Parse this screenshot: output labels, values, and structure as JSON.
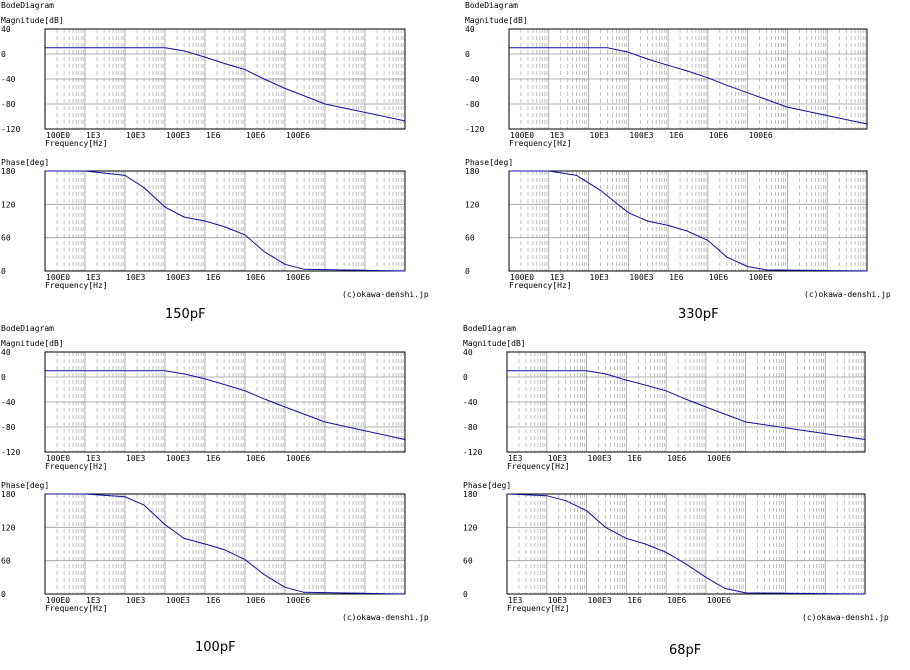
{
  "colors": {
    "grid": "#9a9a9a",
    "trace": "#1010a0",
    "border": "#000000"
  },
  "chart_data": [
    {
      "type": "line",
      "caption": "150pF",
      "title": "BodeDiagram",
      "copyright": "(c)okawa-denshi.jp",
      "x_scale": "log",
      "xlim": [
        1,
        1000000000
      ],
      "x_ticks": [
        {
          "value": 1,
          "label": "100E0"
        },
        {
          "value": 10,
          "label": "1E3"
        },
        {
          "value": 100,
          "label": "10E3"
        },
        {
          "value": 1000,
          "label": "100E3"
        },
        {
          "value": 10000,
          "label": "1E6"
        },
        {
          "value": 100000,
          "label": "10E6"
        },
        {
          "value": 1000000,
          "label": "100E6"
        }
      ],
      "xlabel": "Frequency[Hz]",
      "magnitude": {
        "ylabel": "Magnitude[dB]",
        "ylim": [
          -120,
          40
        ],
        "y_ticks": [
          40,
          0,
          -40,
          -80,
          -120
        ],
        "series": [
          {
            "x": [
              1,
              1000,
              3000,
              10000,
              30000,
              100000,
              300000,
              1000000,
              10000000,
              1000000000
            ],
            "y": [
              10,
              10,
              5,
              -5,
              -15,
              -25,
              -40,
              -55,
              -80,
              -107
            ]
          }
        ]
      },
      "phase": {
        "ylabel": "Phase[deg]",
        "ylim": [
          0,
          180
        ],
        "y_ticks": [
          180,
          120,
          60,
          0
        ],
        "series": [
          {
            "x": [
              1,
              10,
              100,
              300,
              1000,
              3000,
              10000,
              30000,
              100000,
              300000,
              1000000,
              3000000,
              1000000000
            ],
            "y": [
              180,
              180,
              172,
              150,
              115,
              97,
              90,
              80,
              65,
              35,
              12,
              3,
              0
            ]
          }
        ]
      }
    },
    {
      "type": "line",
      "caption": "330pF",
      "title": "BodeDiagram",
      "copyright": "(c)okawa-denshi.jp",
      "x_scale": "log",
      "xlim": [
        1,
        1000000000
      ],
      "x_ticks": [
        {
          "value": 1,
          "label": "100E0"
        },
        {
          "value": 10,
          "label": "1E3"
        },
        {
          "value": 100,
          "label": "10E3"
        },
        {
          "value": 1000,
          "label": "100E3"
        },
        {
          "value": 10000,
          "label": "1E6"
        },
        {
          "value": 100000,
          "label": "10E6"
        },
        {
          "value": 1000000,
          "label": "100E6"
        }
      ],
      "xlabel": "Frequency[Hz]",
      "magnitude": {
        "ylabel": "Magnitude[dB]",
        "ylim": [
          -120,
          40
        ],
        "y_ticks": [
          40,
          0,
          -40,
          -80,
          -120
        ],
        "series": [
          {
            "x": [
              1,
              300,
              1000,
              3000,
              10000,
              30000,
              100000,
              300000,
              1000000,
              10000000,
              1000000000
            ],
            "y": [
              10,
              10,
              3,
              -8,
              -18,
              -27,
              -38,
              -50,
              -62,
              -85,
              -112
            ]
          }
        ]
      },
      "phase": {
        "ylabel": "Phase[deg]",
        "ylim": [
          0,
          180
        ],
        "y_ticks": [
          180,
          120,
          60,
          0
        ],
        "series": [
          {
            "x": [
              1,
              10,
              50,
              200,
              1000,
              3000,
              10000,
              30000,
              100000,
              300000,
              1000000,
              3000000,
              1000000000
            ],
            "y": [
              180,
              180,
              172,
              145,
              105,
              90,
              82,
              72,
              55,
              25,
              8,
              2,
              0
            ]
          }
        ]
      }
    },
    {
      "type": "line",
      "caption": "100pF",
      "title": "BodeDiagram",
      "copyright": "(c)okawa-denshi.jp",
      "x_scale": "log",
      "xlim": [
        1,
        1000000000
      ],
      "x_ticks": [
        {
          "value": 1,
          "label": "100E0"
        },
        {
          "value": 10,
          "label": "1E3"
        },
        {
          "value": 100,
          "label": "10E3"
        },
        {
          "value": 1000,
          "label": "100E3"
        },
        {
          "value": 10000,
          "label": "1E6"
        },
        {
          "value": 100000,
          "label": "10E6"
        },
        {
          "value": 1000000,
          "label": "100E6"
        }
      ],
      "xlabel": "Frequency[Hz]",
      "magnitude": {
        "ylabel": "Magnitude[dB]",
        "ylim": [
          -120,
          40
        ],
        "y_ticks": [
          40,
          0,
          -40,
          -80,
          -120
        ],
        "series": [
          {
            "x": [
              1,
              1000,
              3000,
              10000,
              30000,
              100000,
              300000,
              1000000,
              10000000,
              1000000000
            ],
            "y": [
              10,
              10,
              5,
              -3,
              -12,
              -22,
              -35,
              -48,
              -72,
              -100
            ]
          }
        ]
      },
      "phase": {
        "ylabel": "Phase[deg]",
        "ylim": [
          0,
          180
        ],
        "y_ticks": [
          180,
          120,
          60,
          0
        ],
        "series": [
          {
            "x": [
              1,
              10,
              100,
              300,
              1000,
              3000,
              10000,
              30000,
              100000,
              300000,
              1000000,
              3000000,
              1000000000
            ],
            "y": [
              180,
              180,
              175,
              160,
              125,
              100,
              90,
              80,
              62,
              35,
              12,
              3,
              0
            ]
          }
        ]
      }
    },
    {
      "type": "line",
      "caption": "68pF",
      "title": "BodeDiagram",
      "copyright": "(c)okawa-denshi.jp",
      "x_scale": "log",
      "xlim": [
        10,
        10000000000
      ],
      "x_ticks": [
        {
          "value": 10,
          "label": "1E3"
        },
        {
          "value": 100,
          "label": "10E3"
        },
        {
          "value": 1000,
          "label": "100E3"
        },
        {
          "value": 10000,
          "label": "1E6"
        },
        {
          "value": 100000,
          "label": "10E6"
        },
        {
          "value": 1000000,
          "label": "100E6"
        }
      ],
      "xlabel": "Frequency[Hz]",
      "magnitude": {
        "ylabel": "Magnitude[dB]",
        "ylim": [
          -120,
          40
        ],
        "y_ticks": [
          40,
          0,
          -40,
          -80,
          -120
        ],
        "series": [
          {
            "x": [
              10,
              1000,
              3000,
              10000,
              30000,
              100000,
              300000,
              1000000,
              10000000,
              10000000000
            ],
            "y": [
              10,
              10,
              5,
              -5,
              -13,
              -22,
              -35,
              -48,
              -72,
              -100
            ]
          }
        ]
      },
      "phase": {
        "ylabel": "Phase[deg]",
        "ylim": [
          0,
          180
        ],
        "y_ticks": [
          180,
          120,
          60,
          0
        ],
        "series": [
          {
            "x": [
              10,
              100,
              300,
              1000,
              3000,
              10000,
              30000,
              100000,
              300000,
              1000000,
              3000000,
              10000000,
              10000000000
            ],
            "y": [
              180,
              177,
              168,
              150,
              120,
              100,
              90,
              75,
              55,
              30,
              10,
              2,
              0
            ]
          }
        ]
      }
    }
  ]
}
